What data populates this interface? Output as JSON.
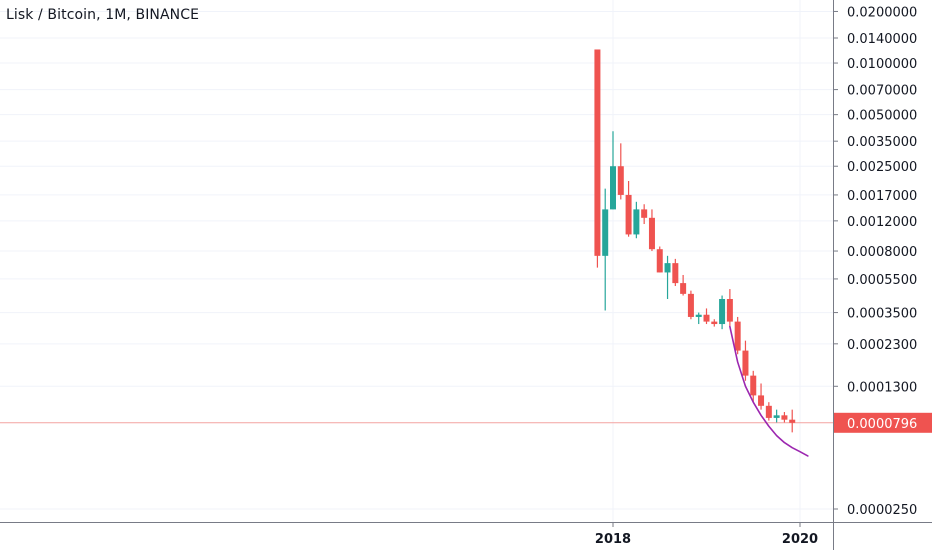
{
  "header": {
    "title": "Lisk / Bitcoin, 1M, BINANCE"
  },
  "colors": {
    "up": "#26a69a",
    "down": "#ef5350",
    "grid": "#f0f3fa",
    "axis_line": "#787b86",
    "text": "#131722",
    "current_price_bg": "#ef5350",
    "current_price_line": "#f4a3a1",
    "curve": "#9c27b0"
  },
  "chart_data": {
    "type": "candlestick",
    "title": "Lisk / Bitcoin, 1M, BINANCE",
    "y_scale": "log",
    "ylim": [
      2e-05,
      0.02
    ],
    "y_ticks": [
      {
        "value": 0.02,
        "label": "0.0200000"
      },
      {
        "value": 0.014,
        "label": "0.0140000"
      },
      {
        "value": 0.01,
        "label": "0.0100000"
      },
      {
        "value": 0.007,
        "label": "0.0070000"
      },
      {
        "value": 0.005,
        "label": "0.0050000"
      },
      {
        "value": 0.0035,
        "label": "0.0035000"
      },
      {
        "value": 0.0025,
        "label": "0.0025000"
      },
      {
        "value": 0.0017,
        "label": "0.0017000"
      },
      {
        "value": 0.0012,
        "label": "0.0012000"
      },
      {
        "value": 0.0008,
        "label": "0.0008000"
      },
      {
        "value": 0.00055,
        "label": "0.0005500"
      },
      {
        "value": 0.00035,
        "label": "0.0003500"
      },
      {
        "value": 0.00023,
        "label": "0.0002300"
      },
      {
        "value": 0.00013,
        "label": "0.0001300"
      },
      {
        "value": 2.5e-05,
        "label": "0.0000250"
      }
    ],
    "x_ticks": [
      {
        "date": "2018-01",
        "label": "2018"
      },
      {
        "date": "2020-01",
        "label": "2020"
      }
    ],
    "current_price": {
      "value": 7.96e-05,
      "label": "0.0000796"
    },
    "grid": true,
    "candles": [
      {
        "date": "2017-11",
        "open": 0.012,
        "high": 0.012,
        "low": 0.00064,
        "close": 0.00075
      },
      {
        "date": "2017-12",
        "open": 0.00075,
        "high": 0.00185,
        "low": 0.00036,
        "close": 0.0014
      },
      {
        "date": "2018-01",
        "open": 0.0014,
        "high": 0.004,
        "low": 0.0014,
        "close": 0.0025
      },
      {
        "date": "2018-02",
        "open": 0.0025,
        "high": 0.0034,
        "low": 0.0016,
        "close": 0.0017
      },
      {
        "date": "2018-03",
        "open": 0.0017,
        "high": 0.00205,
        "low": 0.00097,
        "close": 0.001
      },
      {
        "date": "2018-04",
        "open": 0.001,
        "high": 0.00155,
        "low": 0.00095,
        "close": 0.0014
      },
      {
        "date": "2018-05",
        "open": 0.0014,
        "high": 0.0015,
        "low": 0.00115,
        "close": 0.00125
      },
      {
        "date": "2018-06",
        "open": 0.00125,
        "high": 0.0014,
        "low": 0.0008,
        "close": 0.00082
      },
      {
        "date": "2018-07",
        "open": 0.00082,
        "high": 0.00085,
        "low": 0.0006,
        "close": 0.0006
      },
      {
        "date": "2018-08",
        "open": 0.0006,
        "high": 0.00075,
        "low": 0.00042,
        "close": 0.00068
      },
      {
        "date": "2018-09",
        "open": 0.00068,
        "high": 0.00072,
        "low": 0.0005,
        "close": 0.00052
      },
      {
        "date": "2018-10",
        "open": 0.00052,
        "high": 0.00058,
        "low": 0.00044,
        "close": 0.00045
      },
      {
        "date": "2018-11",
        "open": 0.00045,
        "high": 0.00047,
        "low": 0.00032,
        "close": 0.00033
      },
      {
        "date": "2018-12",
        "open": 0.00033,
        "high": 0.00035,
        "low": 0.0003,
        "close": 0.00034
      },
      {
        "date": "2019-01",
        "open": 0.00034,
        "high": 0.00037,
        "low": 0.0003,
        "close": 0.00031
      },
      {
        "date": "2019-02",
        "open": 0.00031,
        "high": 0.00032,
        "low": 0.00029,
        "close": 0.0003
      },
      {
        "date": "2019-03",
        "open": 0.0003,
        "high": 0.00044,
        "low": 0.00028,
        "close": 0.00042
      },
      {
        "date": "2019-04",
        "open": 0.00042,
        "high": 0.00048,
        "low": 0.00029,
        "close": 0.00031
      },
      {
        "date": "2019-05",
        "open": 0.00031,
        "high": 0.00033,
        "low": 0.0002,
        "close": 0.00021
      },
      {
        "date": "2019-06",
        "open": 0.00021,
        "high": 0.00024,
        "low": 0.00014,
        "close": 0.00015
      },
      {
        "date": "2019-07",
        "open": 0.00015,
        "high": 0.00016,
        "low": 0.000105,
        "close": 0.000115
      },
      {
        "date": "2019-08",
        "open": 0.000115,
        "high": 0.000135,
        "low": 9.5e-05,
        "close": 0.0001
      },
      {
        "date": "2019-09",
        "open": 0.0001,
        "high": 0.000105,
        "low": 8.2e-05,
        "close": 8.5e-05
      },
      {
        "date": "2019-10",
        "open": 8.5e-05,
        "high": 9.5e-05,
        "low": 8e-05,
        "close": 8.8e-05
      },
      {
        "date": "2019-11",
        "open": 8.8e-05,
        "high": 9.2e-05,
        "low": 8e-05,
        "close": 8.3e-05
      },
      {
        "date": "2019-12",
        "open": 8.3e-05,
        "high": 9.5e-05,
        "low": 7e-05,
        "close": 7.96e-05
      }
    ],
    "curve": [
      {
        "date": "2019-04",
        "value": 0.00029
      },
      {
        "date": "2019-05",
        "value": 0.00018
      },
      {
        "date": "2019-06",
        "value": 0.00013
      },
      {
        "date": "2019-07",
        "value": 0.000105
      },
      {
        "date": "2019-08",
        "value": 8.8e-05
      },
      {
        "date": "2019-09",
        "value": 7.6e-05
      },
      {
        "date": "2019-10",
        "value": 6.7e-05
      },
      {
        "date": "2019-11",
        "value": 6.1e-05
      },
      {
        "date": "2019-12",
        "value": 5.7e-05
      },
      {
        "date": "2020-01",
        "value": 5.4e-05
      },
      {
        "date": "2020-02",
        "value": 5.1e-05
      }
    ]
  }
}
